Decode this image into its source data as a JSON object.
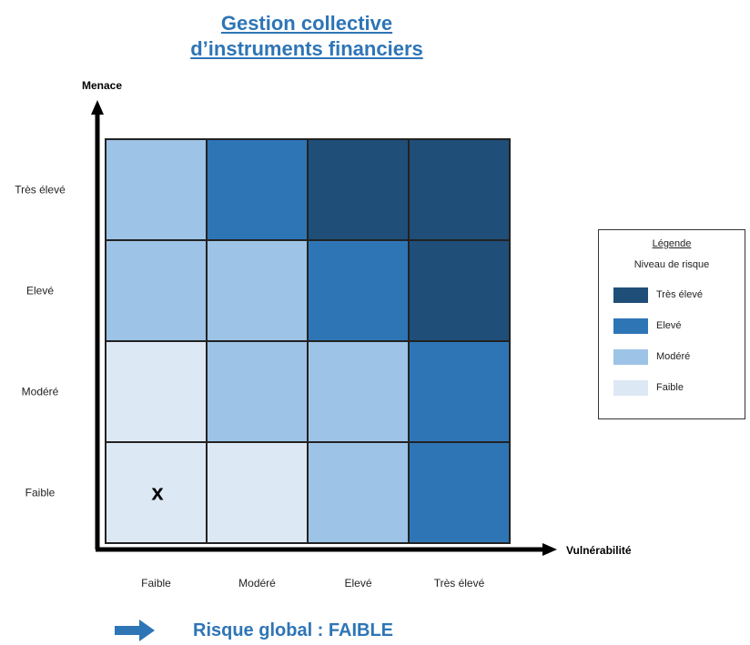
{
  "title": {
    "line1": "Gestion collective",
    "line2": "d’instruments financiers"
  },
  "chart_data": {
    "type": "heatmap",
    "ylabel": "Menace",
    "xlabel": "Vulnérabilité",
    "x_categories": [
      "Faible",
      "Modéré",
      "Elevé",
      "Très élevé"
    ],
    "y_categories": [
      "Faible",
      "Modéré",
      "Elevé",
      "Très élevé"
    ],
    "risk_levels": [
      "Faible",
      "Modéré",
      "Elevé",
      "Très élevé"
    ],
    "level_colors": [
      "#dde8f5",
      "#9dc3e6",
      "#2e75b6",
      "#1f4e79"
    ],
    "matrix": [
      [
        0,
        0,
        1,
        2
      ],
      [
        0,
        1,
        1,
        2
      ],
      [
        1,
        1,
        2,
        3
      ],
      [
        1,
        2,
        3,
        3
      ]
    ],
    "marker": {
      "text": "x",
      "x": "Faible",
      "y": "Faible"
    },
    "legend_position": "right"
  },
  "legend": {
    "title": "Légende",
    "subtitle": "Niveau de risque",
    "items": [
      {
        "label": "Très élevé",
        "color": "#1f4e79"
      },
      {
        "label": "Elevé",
        "color": "#2e75b6"
      },
      {
        "label": "Modéré",
        "color": "#9dc3e6"
      },
      {
        "label": "Faible",
        "color": "#dde8f5"
      }
    ]
  },
  "footer": {
    "text": "Risque global : FAIBLE",
    "arrow_icon": "right-arrow-icon",
    "color": "#2e75b6"
  }
}
